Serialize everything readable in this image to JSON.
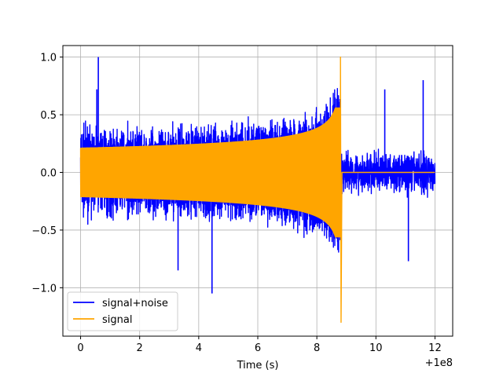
{
  "chart_data": {
    "type": "line",
    "title": "",
    "xlabel": "Time (s)",
    "ylabel": "",
    "x_offset_label": "+1e8",
    "xlim": [
      -0.6,
      12.6
    ],
    "ylim": [
      -1.42,
      1.1
    ],
    "xticks": [
      0,
      2,
      4,
      6,
      8,
      10,
      12
    ],
    "yticks": [
      -1.0,
      -0.5,
      0.0,
      0.5,
      1.0
    ],
    "xtick_labels": [
      "0",
      "2",
      "4",
      "6",
      "8",
      "10",
      "12"
    ],
    "ytick_labels": [
      "−1.0",
      "−0.5",
      "0.0",
      "0.5",
      "1.0"
    ],
    "grid": true,
    "legend_position": "lower-left",
    "series": [
      {
        "name": "signal+noise",
        "color": "#0000ff",
        "description": "noisy trace spanning x 0 to 12",
        "x_range": [
          0,
          12
        ],
        "peak_points": [
          {
            "x": 0.55,
            "y": 0.72
          },
          {
            "x": 0.6,
            "y": 1.0
          },
          {
            "x": 4.45,
            "y": -1.05
          },
          {
            "x": 3.3,
            "y": -0.85
          },
          {
            "x": 11.6,
            "y": 0.8
          },
          {
            "x": 10.3,
            "y": 0.72
          },
          {
            "x": 11.1,
            "y": -0.77
          }
        ]
      },
      {
        "name": "signal",
        "color": "#ffa500",
        "description": "chirp with growing envelope ending at merger",
        "envelope_start": 0.21,
        "merger_x": 8.8,
        "merger_max": 1.0,
        "merger_min": -1.3,
        "x_range": [
          0,
          12
        ]
      }
    ]
  }
}
